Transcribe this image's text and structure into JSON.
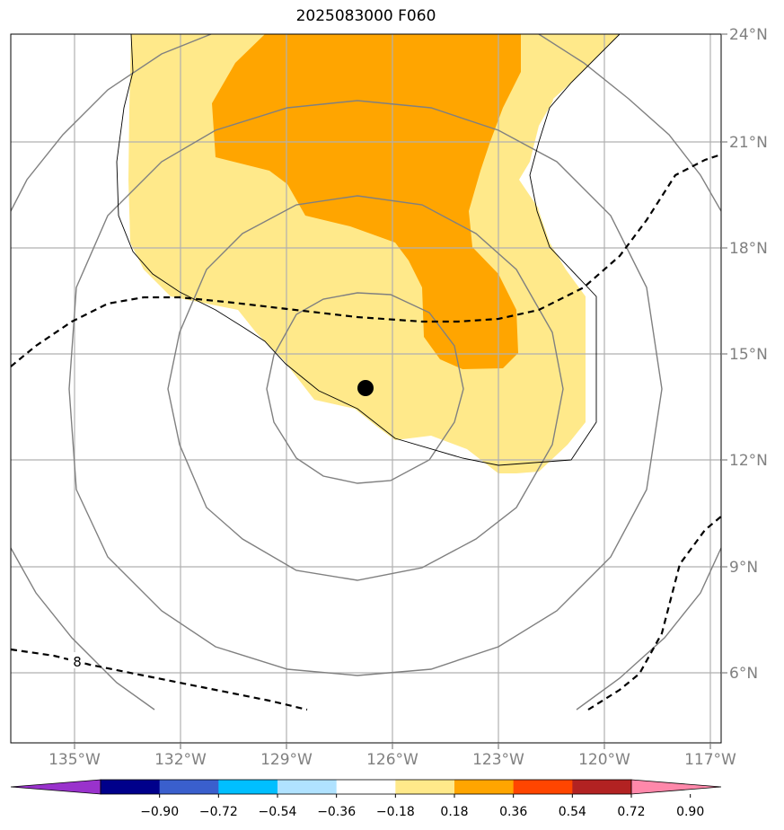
{
  "title": "2025083000 F060",
  "map": {
    "lon_ticks": [
      "135°W",
      "132°W",
      "129°W",
      "126°W",
      "123°W",
      "120°W",
      "117°W"
    ],
    "lat_ticks": [
      "24°N",
      "21°N",
      "18°N",
      "15°N",
      "12°N",
      "9°N",
      "6°N"
    ],
    "lon_range": [
      -136.8,
      -116.8
    ],
    "lat_range": [
      4.2,
      24.0
    ],
    "center_marker": {
      "lon": -127.2,
      "lat": 14.0
    },
    "contour_label": "8"
  },
  "colorbar": {
    "labels": [
      "−0.90",
      "−0.72",
      "−0.54",
      "−0.36",
      "−0.18",
      "0.18",
      "0.36",
      "0.54",
      "0.72",
      "0.90"
    ],
    "colors": [
      "#9932cc",
      "#00008b",
      "#3a5fcd",
      "#00bfff",
      "#b0e2ff",
      "#ffffff",
      "#ffe98a",
      "#ffa500",
      "#ff4500",
      "#b22222",
      "#ff88aa"
    ]
  }
}
